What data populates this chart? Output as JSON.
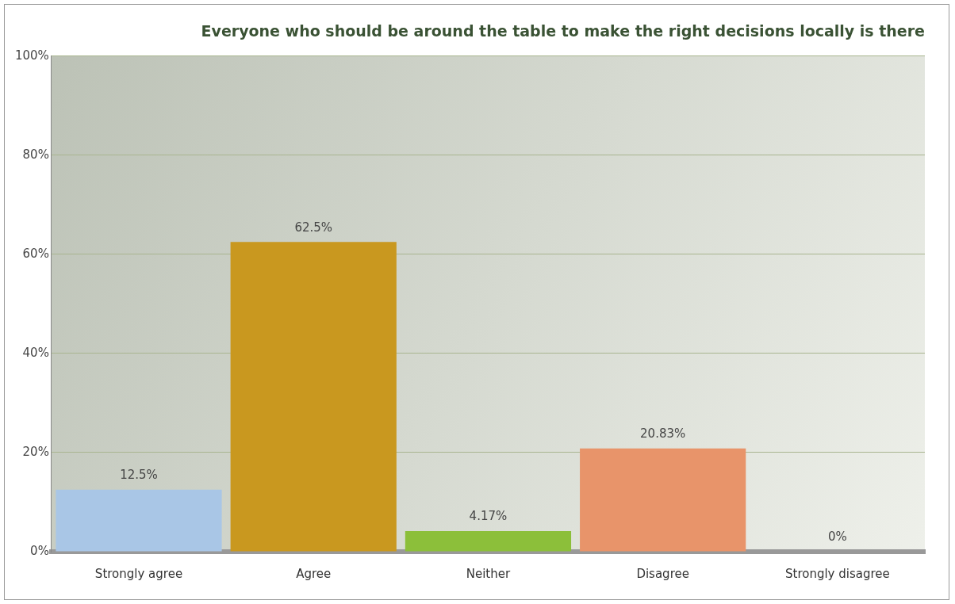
{
  "chart_data": {
    "type": "bar",
    "title": "Everyone who should be around the table to make the right decisions locally is there",
    "categories": [
      "Strongly agree",
      "Agree",
      "Neither",
      "Disagree",
      "Strongly disagree"
    ],
    "values": [
      12.5,
      62.5,
      4.17,
      20.83,
      0
    ],
    "colors": [
      "#a9c6e6",
      "#c9981f",
      "#8cbf3a",
      "#e8946a",
      "#3aa8aa"
    ],
    "value_labels": [
      "12.5%",
      "62.5%",
      "4.17%",
      "20.83%",
      "0%"
    ],
    "ylim": [
      0,
      100
    ],
    "yticks": [
      {
        "value": 0,
        "label": "0%"
      },
      {
        "value": 20,
        "label": "20%"
      },
      {
        "value": 40,
        "label": "40%"
      },
      {
        "value": 60,
        "label": "60%"
      },
      {
        "value": 80,
        "label": "80%"
      },
      {
        "value": 100,
        "label": "100%"
      }
    ],
    "grid": "y",
    "legend": false
  }
}
